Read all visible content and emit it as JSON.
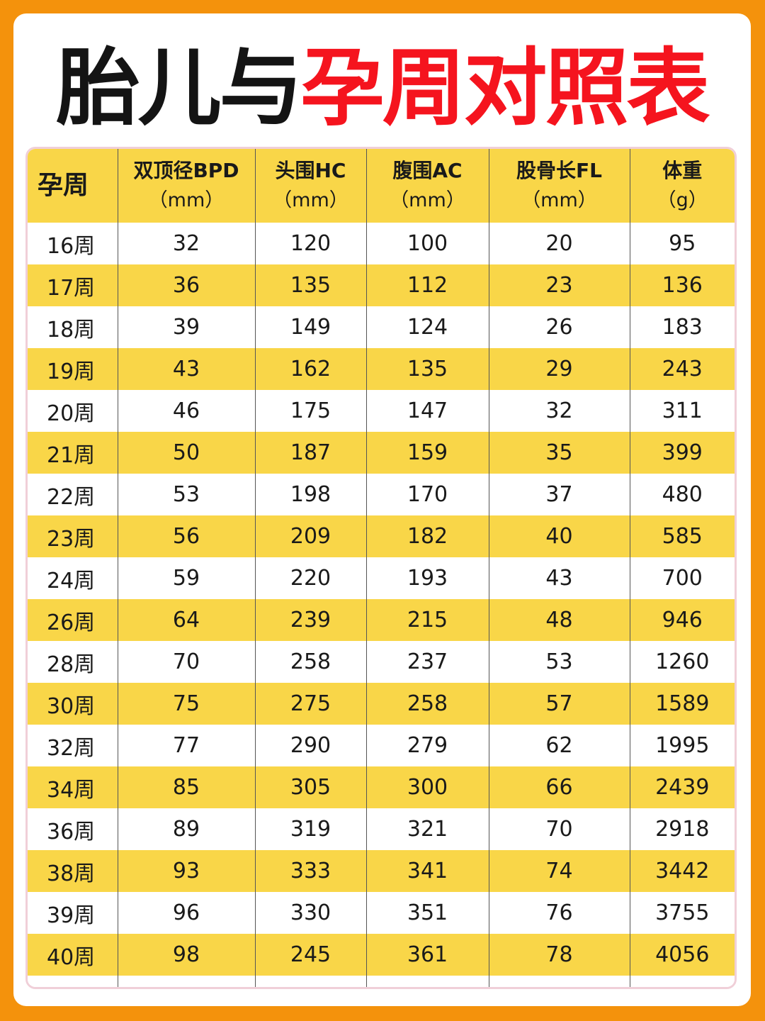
{
  "title": {
    "part1": "胎儿与",
    "part2": "孕周对照表"
  },
  "table": {
    "headers": [
      {
        "label": "孕周",
        "unit": ""
      },
      {
        "label": "双顶径BPD",
        "unit": "（mm）"
      },
      {
        "label": "头围HC",
        "unit": "（mm）"
      },
      {
        "label": "腹围AC",
        "unit": "（mm）"
      },
      {
        "label": "股骨长FL",
        "unit": "（mm）"
      },
      {
        "label": "体重",
        "unit": "（g）"
      }
    ],
    "rows": [
      [
        "16周",
        "32",
        "120",
        "100",
        "20",
        "95"
      ],
      [
        "17周",
        "36",
        "135",
        "112",
        "23",
        "136"
      ],
      [
        "18周",
        "39",
        "149",
        "124",
        "26",
        "183"
      ],
      [
        "19周",
        "43",
        "162",
        "135",
        "29",
        "243"
      ],
      [
        "20周",
        "46",
        "175",
        "147",
        "32",
        "311"
      ],
      [
        "21周",
        "50",
        "187",
        "159",
        "35",
        "399"
      ],
      [
        "22周",
        "53",
        "198",
        "170",
        "37",
        "480"
      ],
      [
        "23周",
        "56",
        "209",
        "182",
        "40",
        "585"
      ],
      [
        "24周",
        "59",
        "220",
        "193",
        "43",
        "700"
      ],
      [
        "26周",
        "64",
        "239",
        "215",
        "48",
        "946"
      ],
      [
        "28周",
        "70",
        "258",
        "237",
        "53",
        "1260"
      ],
      [
        "30周",
        "75",
        "275",
        "258",
        "57",
        "1589"
      ],
      [
        "32周",
        "77",
        "290",
        "279",
        "62",
        "1995"
      ],
      [
        "34周",
        "85",
        "305",
        "300",
        "66",
        "2439"
      ],
      [
        "36周",
        "89",
        "319",
        "321",
        "70",
        "2918"
      ],
      [
        "38周",
        "93",
        "333",
        "341",
        "74",
        "3442"
      ],
      [
        "39周",
        "96",
        "330",
        "351",
        "76",
        "3755"
      ],
      [
        "40周",
        "98",
        "245",
        "361",
        "78",
        "4056"
      ]
    ]
  },
  "colors": {
    "background": "#f4920c",
    "title_black": "#141414",
    "title_red": "#f5141e",
    "row_highlight": "#f9d648"
  }
}
